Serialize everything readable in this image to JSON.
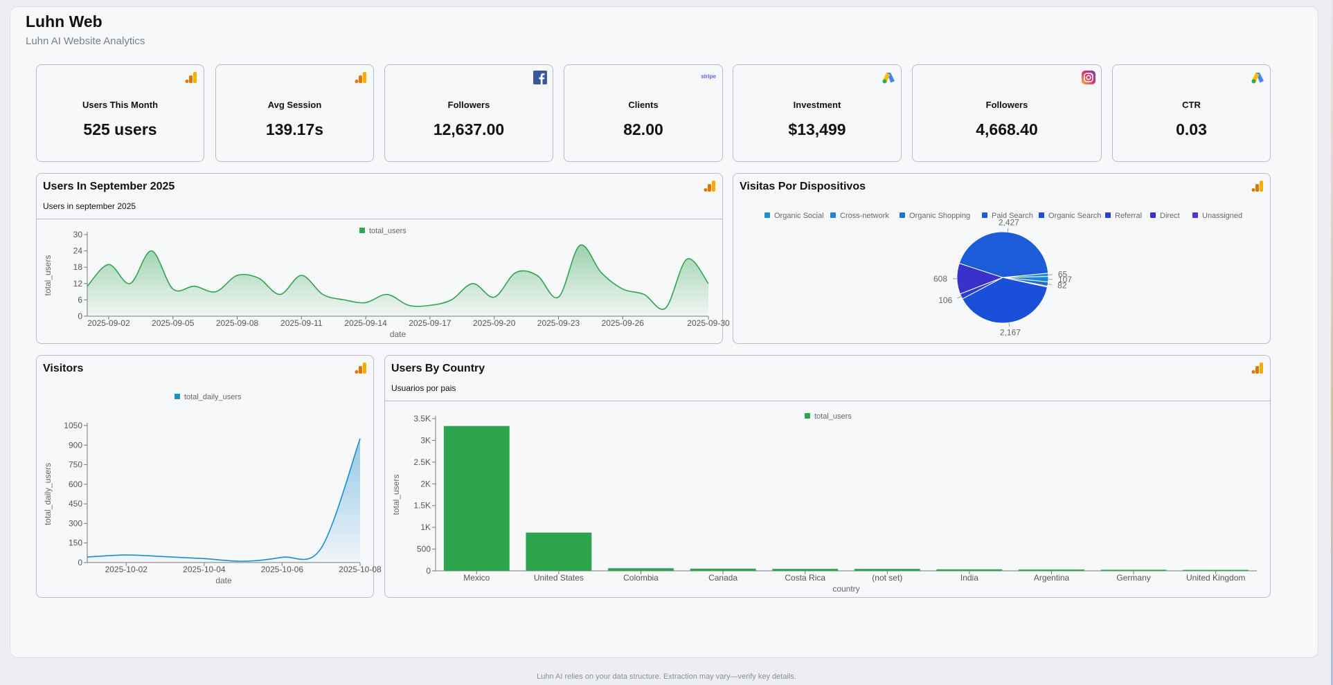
{
  "app": {
    "title": "Luhn Web",
    "subtitle": "Luhn AI Website Analytics"
  },
  "kpis": [
    {
      "label": "Users This Month",
      "value": "525 users",
      "source": "google-analytics-icon"
    },
    {
      "label": "Avg Session",
      "value": "139.17s",
      "source": "google-analytics-icon"
    },
    {
      "label": "Followers",
      "value": "12,637.00",
      "source": "facebook-icon"
    },
    {
      "label": "Clients",
      "value": "82.00",
      "source": "stripe-icon",
      "source_text": "stripe"
    },
    {
      "label": "Investment",
      "value": "$13,499",
      "source": "google-ads-icon"
    },
    {
      "label": "Followers",
      "value": "4,668.40",
      "source": "instagram-icon"
    },
    {
      "label": "CTR",
      "value": "0.03",
      "source": "google-ads-icon"
    }
  ],
  "panels": {
    "users_sept": {
      "title": "Users In September 2025",
      "subtitle": "Users in september 2025"
    },
    "devices": {
      "title": "Visitas Por Dispositivos"
    },
    "visitors": {
      "title": "Visitors"
    },
    "country": {
      "title": "Users By Country",
      "subtitle": "Usuarios por pais"
    }
  },
  "colors": {
    "green": "#2ea44f",
    "blue": "#1a8fcf",
    "ga_orange": "#f9ab00",
    "ga_dark": "#e37400",
    "pie": [
      "#1f8fd6",
      "#1e84d4",
      "#1d6fd8",
      "#1c5cd9",
      "#1b4fd9",
      "#2a3dd4",
      "#3a30cc",
      "#5a33c6"
    ]
  },
  "footer": {
    "text": "Luhn AI relies on your data structure. Extraction may vary—verify key details."
  },
  "chart_data": [
    {
      "id": "users_sept",
      "type": "area",
      "title": "Users In September 2025",
      "xlabel": "date",
      "ylabel": "total_users",
      "legend": "total_users",
      "ylim": [
        0,
        30
      ],
      "yticks": [
        0,
        6,
        12,
        18,
        24,
        30
      ],
      "xticks": [
        "2025-09-02",
        "2025-09-05",
        "2025-09-08",
        "2025-09-11",
        "2025-09-14",
        "2025-09-17",
        "2025-09-20",
        "2025-09-23",
        "2025-09-26",
        "2025-09-30"
      ],
      "x": [
        "2025-09-01",
        "2025-09-02",
        "2025-09-03",
        "2025-09-04",
        "2025-09-05",
        "2025-09-06",
        "2025-09-07",
        "2025-09-08",
        "2025-09-09",
        "2025-09-10",
        "2025-09-11",
        "2025-09-12",
        "2025-09-13",
        "2025-09-14",
        "2025-09-15",
        "2025-09-16",
        "2025-09-17",
        "2025-09-18",
        "2025-09-19",
        "2025-09-20",
        "2025-09-21",
        "2025-09-22",
        "2025-09-23",
        "2025-09-24",
        "2025-09-25",
        "2025-09-26",
        "2025-09-27",
        "2025-09-28",
        "2025-09-29",
        "2025-09-30"
      ],
      "values": [
        11,
        19,
        12,
        24,
        10,
        11,
        9,
        15,
        14,
        8,
        15,
        8,
        6,
        5,
        8,
        4,
        4,
        6,
        12,
        7,
        16,
        15,
        7,
        26,
        16,
        10,
        8,
        3,
        21,
        12
      ]
    },
    {
      "id": "devices",
      "type": "pie",
      "title": "Visitas Por Dispositivos",
      "legend": [
        "Organic Social",
        "Cross-network",
        "Organic Shopping",
        "Paid Search",
        "Organic Search",
        "Referral",
        "Direct",
        "Unassigned"
      ],
      "labels": [
        "Organic Social",
        "Cross-network",
        "Organic Shopping",
        "Paid Search",
        "Organic Search",
        "Referral",
        "Direct",
        "Unassigned"
      ],
      "values": [
        65,
        107,
        82,
        2427,
        2167,
        106,
        608,
        20
      ],
      "data_labels": [
        "65",
        "107",
        "82",
        "2,427",
        "2,167",
        "106",
        "608",
        ""
      ]
    },
    {
      "id": "visitors",
      "type": "area",
      "title": "Visitors",
      "xlabel": "date",
      "ylabel": "total_daily_users",
      "legend": "total_daily_users",
      "ylim": [
        0,
        1050
      ],
      "yticks": [
        0,
        150,
        300,
        450,
        600,
        750,
        900,
        1050
      ],
      "xticks": [
        "2025-10-02",
        "2025-10-04",
        "2025-10-06",
        "2025-10-08"
      ],
      "x": [
        "2025-10-01",
        "2025-10-02",
        "2025-10-03",
        "2025-10-04",
        "2025-10-05",
        "2025-10-06",
        "2025-10-07",
        "2025-10-08"
      ],
      "values": [
        42,
        58,
        45,
        30,
        10,
        40,
        110,
        950
      ]
    },
    {
      "id": "country",
      "type": "bar",
      "title": "Users By Country",
      "xlabel": "country",
      "ylabel": "total_users",
      "legend": "total_users",
      "ylim": [
        0,
        3500
      ],
      "yticks": [
        "0",
        "500",
        "1K",
        "1.5K",
        "2K",
        "2.5K",
        "3K",
        "3.5K"
      ],
      "categories": [
        "Mexico",
        "United States",
        "Colombia",
        "Canada",
        "Costa Rica",
        "(not set)",
        "India",
        "Argentina",
        "Germany",
        "United Kingdom"
      ],
      "values": [
        3330,
        880,
        60,
        50,
        45,
        45,
        35,
        30,
        25,
        22
      ]
    }
  ]
}
